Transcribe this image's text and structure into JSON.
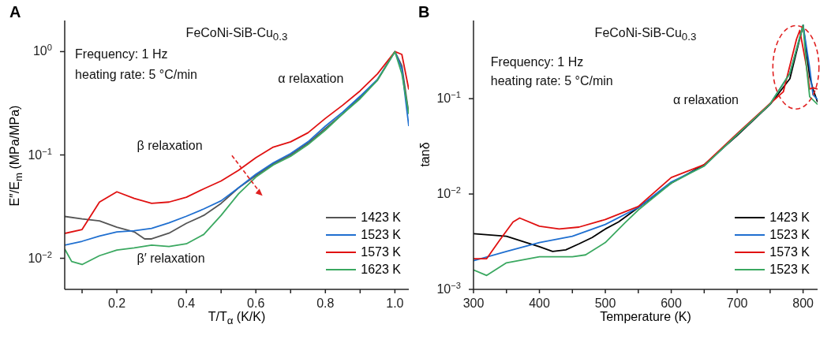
{
  "chart_data": [
    {
      "type": "line",
      "title": "A",
      "xlabel": "T/T$_{α}$ (K/K)",
      "ylabel": "E″/E$_{m}$ (MPa/MPa)",
      "log": "y",
      "legend": "bottom right",
      "grid": false,
      "annotations": [
        "FeCoNi-SiB-Cu$_{0.3}$",
        "Frequency: 1 Hz",
        "heating rate: 5 °C/min",
        "α relaxation",
        "β relaxation",
        "β′ relaxation"
      ],
      "xlim": [
        0.05,
        1.04
      ],
      "xticks": [
        {
          "value": 0.1,
          "label": null
        },
        0.2,
        {
          "value": 0.3,
          "label": null
        },
        0.4,
        {
          "value": 0.5,
          "label": null
        },
        0.6,
        {
          "value": 0.7,
          "label": null
        },
        0.8,
        {
          "value": 0.9,
          "label": null
        },
        {
          "value": 1,
          "label": "1.0"
        }
      ],
      "ylim": [
        0.005,
        2
      ],
      "yticks": [
        {
          "value": 0.01,
          "label": "10$^{−2}$"
        },
        {
          "value": 0.1,
          "label": "10$^{−1}$"
        },
        {
          "value": 1,
          "label": "10$^{0}$"
        }
      ],
      "series": [
        {
          "name": "1423 K",
          "color": "#555555",
          "x": [
            0.05,
            0.1,
            0.15,
            0.2,
            0.25,
            0.28,
            0.3,
            0.35,
            0.4,
            0.45,
            0.5,
            0.55,
            0.6,
            0.65,
            0.7,
            0.75,
            0.8,
            0.85,
            0.9,
            0.95,
            1.0,
            1.02,
            1.04
          ],
          "values": [
            0.0254,
            0.024,
            0.023,
            0.02,
            0.018,
            0.0154,
            0.0154,
            0.0175,
            0.0218,
            0.026,
            0.034,
            0.048,
            0.063,
            0.082,
            0.1,
            0.13,
            0.18,
            0.25,
            0.36,
            0.53,
            1.0,
            0.73,
            0.25
          ]
        },
        {
          "name": "1523 K",
          "color": "#1f6fd0",
          "x": [
            0.05,
            0.1,
            0.15,
            0.2,
            0.25,
            0.3,
            0.35,
            0.4,
            0.45,
            0.5,
            0.55,
            0.6,
            0.65,
            0.7,
            0.75,
            0.8,
            0.85,
            0.9,
            0.95,
            1.0,
            1.02,
            1.04
          ],
          "values": [
            0.0134,
            0.0146,
            0.0164,
            0.018,
            0.0185,
            0.0195,
            0.022,
            0.0255,
            0.03,
            0.036,
            0.048,
            0.065,
            0.084,
            0.103,
            0.134,
            0.19,
            0.26,
            0.37,
            0.54,
            1.0,
            0.68,
            0.19
          ]
        },
        {
          "name": "1573 K",
          "color": "#e01010",
          "x": [
            0.05,
            0.1,
            0.15,
            0.2,
            0.25,
            0.3,
            0.35,
            0.4,
            0.45,
            0.5,
            0.55,
            0.6,
            0.65,
            0.7,
            0.75,
            0.8,
            0.85,
            0.9,
            0.95,
            1.0,
            1.02,
            1.04
          ],
          "values": [
            0.0174,
            0.019,
            0.035,
            0.044,
            0.038,
            0.034,
            0.035,
            0.039,
            0.047,
            0.056,
            0.071,
            0.094,
            0.119,
            0.134,
            0.164,
            0.226,
            0.303,
            0.417,
            0.61,
            1.0,
            0.94,
            0.43
          ]
        },
        {
          "name": "1623 K",
          "color": "#3aa860",
          "x": [
            0.05,
            0.07,
            0.1,
            0.15,
            0.2,
            0.25,
            0.3,
            0.35,
            0.4,
            0.45,
            0.5,
            0.55,
            0.6,
            0.65,
            0.7,
            0.75,
            0.8,
            0.85,
            0.9,
            0.95,
            1.0,
            1.02,
            1.04
          ],
          "values": [
            0.0123,
            0.0093,
            0.0087,
            0.0106,
            0.012,
            0.0126,
            0.0134,
            0.013,
            0.0138,
            0.017,
            0.026,
            0.042,
            0.061,
            0.08,
            0.097,
            0.126,
            0.174,
            0.25,
            0.35,
            0.53,
            1.0,
            0.61,
            0.25
          ]
        }
      ]
    },
    {
      "type": "line",
      "title": "B",
      "xlabel": "Temperature (K)",
      "ylabel": "tanδ",
      "log": "y",
      "legend": "bottom right",
      "grid": false,
      "annotations": [
        "FeCoNi-SiB-Cu$_{0.3}$",
        "Frequency: 1 Hz",
        "heating rate: 5 °C/min",
        "α relaxation"
      ],
      "xlim": [
        300,
        822
      ],
      "xticks": [
        300,
        {
          "value": 350,
          "label": null
        },
        400,
        {
          "value": 450,
          "label": null
        },
        500,
        {
          "value": 550,
          "label": null
        },
        600,
        {
          "value": 650,
          "label": null
        },
        700,
        {
          "value": 750,
          "label": null
        },
        800
      ],
      "ylim": [
        0.001,
        0.66
      ],
      "yticks": [
        {
          "value": 0.001,
          "label": "10$^{−3}$"
        },
        {
          "value": 0.01,
          "label": "10$^{−2}$"
        },
        {
          "value": 0.1,
          "label": "10$^{−1}$"
        }
      ],
      "series": [
        {
          "name": "1423 K",
          "color": "#000000",
          "x": [
            300,
            350,
            380,
            400,
            420,
            440,
            460,
            480,
            500,
            520,
            550,
            600,
            650,
            700,
            750,
            780,
            800,
            810,
            815,
            822
          ],
          "values": [
            0.00383,
            0.0036,
            0.0031,
            0.0028,
            0.0025,
            0.0026,
            0.003,
            0.0035,
            0.0043,
            0.0051,
            0.0072,
            0.013,
            0.0203,
            0.041,
            0.087,
            0.162,
            0.59,
            0.17,
            0.126,
            0.092
          ]
        },
        {
          "name": "1523 K",
          "color": "#1f6fd0",
          "x": [
            300,
            350,
            400,
            450,
            500,
            550,
            600,
            650,
            700,
            750,
            780,
            800,
            810,
            815,
            822
          ],
          "values": [
            0.002,
            0.0025,
            0.0031,
            0.0036,
            0.0048,
            0.0072,
            0.0134,
            0.0197,
            0.042,
            0.088,
            0.184,
            0.59,
            0.21,
            0.11,
            0.098
          ]
        },
        {
          "name": "1573 K",
          "color": "#e01010",
          "x": [
            300,
            320,
            340,
            360,
            370,
            400,
            430,
            460,
            500,
            550,
            600,
            650,
            700,
            750,
            770,
            790,
            795,
            805,
            810,
            815,
            822
          ],
          "values": [
            0.0021,
            0.0021,
            0.0033,
            0.0051,
            0.0056,
            0.0046,
            0.0043,
            0.0045,
            0.0054,
            0.0074,
            0.0149,
            0.0203,
            0.043,
            0.089,
            0.118,
            0.42,
            0.52,
            0.22,
            0.126,
            0.13,
            0.126
          ]
        },
        {
          "name": "1523 K",
          "color": "#3aa860",
          "x": [
            300,
            320,
            350,
            400,
            450,
            470,
            500,
            530,
            550,
            600,
            650,
            700,
            750,
            780,
            800,
            805,
            810,
            822
          ],
          "values": [
            0.0016,
            0.0014,
            0.0019,
            0.0022,
            0.0022,
            0.0023,
            0.0031,
            0.005,
            0.0068,
            0.013,
            0.0197,
            0.042,
            0.088,
            0.184,
            0.59,
            0.22,
            0.105,
            0.087
          ]
        }
      ]
    }
  ]
}
